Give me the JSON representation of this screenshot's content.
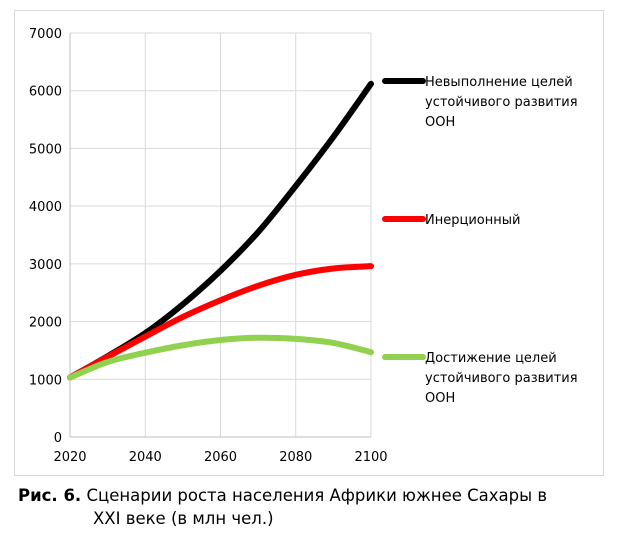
{
  "caption": {
    "label": "Рис. 6.",
    "line1": " Сценарии роста населения Африки южнее Сахары в",
    "line2": "XXI веке (в млн чел.)"
  },
  "chart_data": {
    "type": "line",
    "title": "",
    "xlabel": "",
    "ylabel": "",
    "xlim": [
      2020,
      2100
    ],
    "ylim": [
      0,
      7000
    ],
    "x_ticks": [
      "2020",
      "2040",
      "2060",
      "2080",
      "2100"
    ],
    "y_ticks": [
      "0",
      "1000",
      "2000",
      "3000",
      "4000",
      "5000",
      "6000",
      "7000"
    ],
    "grid": true,
    "legend_position": "right",
    "x": [
      2020,
      2030,
      2040,
      2050,
      2060,
      2070,
      2080,
      2090,
      2100
    ],
    "series": [
      {
        "name_lines": [
          "Невыполнение целей",
          "устойчивого развития",
          "ООН"
        ],
        "color": "#000000",
        "values": [
          1030,
          1400,
          1800,
          2300,
          2880,
          3550,
          4350,
          5200,
          6120
        ]
      },
      {
        "name_lines": [
          "Инерционный"
        ],
        "color": "#ff0000",
        "values": [
          1030,
          1390,
          1740,
          2080,
          2370,
          2620,
          2810,
          2920,
          2960
        ]
      },
      {
        "name_lines": [
          "Достижение целей",
          "устойчивого развития",
          "ООН"
        ],
        "color": "#92d050",
        "values": [
          1030,
          1300,
          1460,
          1590,
          1680,
          1720,
          1700,
          1630,
          1470
        ]
      }
    ]
  }
}
